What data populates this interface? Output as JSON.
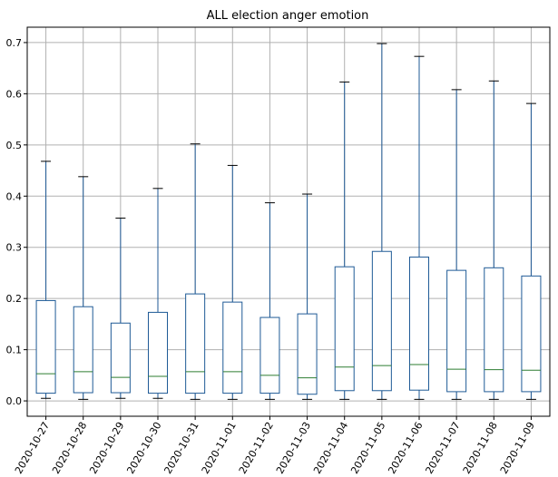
{
  "chart_data": {
    "type": "boxplot",
    "title": "ALL election anger emotion",
    "xlabel": "",
    "ylabel": "",
    "ylim": [
      -0.03,
      0.73
    ],
    "yticks": [
      0.0,
      0.1,
      0.2,
      0.3,
      0.4,
      0.5,
      0.6,
      0.7
    ],
    "ytick_labels": [
      "0.0",
      "0.1",
      "0.2",
      "0.3",
      "0.4",
      "0.5",
      "0.6",
      "0.7"
    ],
    "grid": true,
    "colors": {
      "box": "#1f5a96",
      "median": "#2e7d32",
      "caps": "#000000",
      "grid": "#b0b0b0"
    },
    "categories": [
      "2020-10-27",
      "2020-10-28",
      "2020-10-29",
      "2020-10-30",
      "2020-10-31",
      "2020-11-01",
      "2020-11-02",
      "2020-11-03",
      "2020-11-04",
      "2020-11-05",
      "2020-11-06",
      "2020-11-07",
      "2020-11-08",
      "2020-11-09"
    ],
    "boxes": [
      {
        "whislo": 0.005,
        "q1": 0.015,
        "med": 0.053,
        "q3": 0.196,
        "whishi": 0.468
      },
      {
        "whislo": 0.003,
        "q1": 0.016,
        "med": 0.057,
        "q3": 0.184,
        "whishi": 0.438
      },
      {
        "whislo": 0.005,
        "q1": 0.016,
        "med": 0.046,
        "q3": 0.152,
        "whishi": 0.357
      },
      {
        "whislo": 0.005,
        "q1": 0.015,
        "med": 0.048,
        "q3": 0.173,
        "whishi": 0.415
      },
      {
        "whislo": 0.003,
        "q1": 0.015,
        "med": 0.057,
        "q3": 0.209,
        "whishi": 0.502
      },
      {
        "whislo": 0.003,
        "q1": 0.015,
        "med": 0.057,
        "q3": 0.193,
        "whishi": 0.46
      },
      {
        "whislo": 0.003,
        "q1": 0.015,
        "med": 0.05,
        "q3": 0.163,
        "whishi": 0.387
      },
      {
        "whislo": 0.003,
        "q1": 0.013,
        "med": 0.045,
        "q3": 0.17,
        "whishi": 0.404
      },
      {
        "whislo": 0.003,
        "q1": 0.02,
        "med": 0.066,
        "q3": 0.262,
        "whishi": 0.623
      },
      {
        "whislo": 0.003,
        "q1": 0.02,
        "med": 0.069,
        "q3": 0.292,
        "whishi": 0.698
      },
      {
        "whislo": 0.003,
        "q1": 0.021,
        "med": 0.071,
        "q3": 0.281,
        "whishi": 0.673
      },
      {
        "whislo": 0.003,
        "q1": 0.018,
        "med": 0.062,
        "q3": 0.255,
        "whishi": 0.608
      },
      {
        "whislo": 0.003,
        "q1": 0.018,
        "med": 0.061,
        "q3": 0.26,
        "whishi": 0.625
      },
      {
        "whislo": 0.003,
        "q1": 0.018,
        "med": 0.06,
        "q3": 0.244,
        "whishi": 0.581
      }
    ]
  }
}
